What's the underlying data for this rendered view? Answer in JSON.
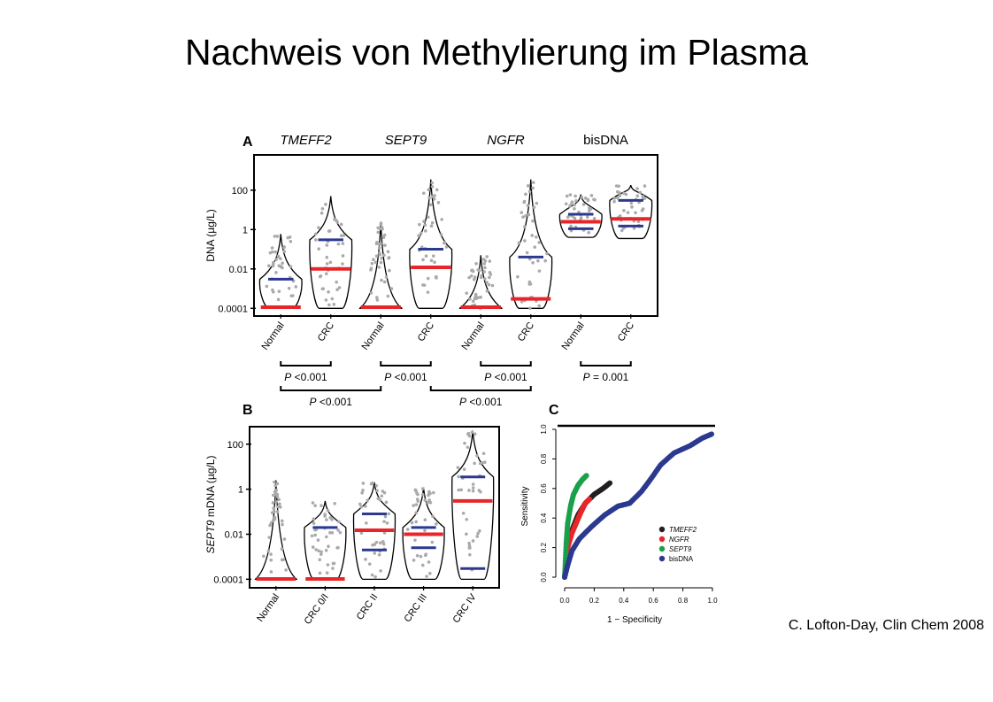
{
  "slide": {
    "title": "Nachweis von Methylierung im Plasma",
    "citation": "C. Lofton-Day, Clin Chem 2008"
  },
  "colors": {
    "median": "#e8262a",
    "quartile": "#2b3990",
    "point": "#aaaaaa",
    "tmeff2": "#231f20",
    "ngfr": "#e8262a",
    "sept9": "#1aa04a",
    "bisdna": "#2b3990"
  },
  "chart_data": [
    {
      "panel": "A",
      "type": "violin",
      "scale": "log",
      "ylabel": "DNA (µg/L)",
      "yticks": [
        {
          "value": 0.0001,
          "label": "0.0001"
        },
        {
          "value": 0.01,
          "label": "0.01"
        },
        {
          "value": 1,
          "label": "1"
        },
        {
          "value": 100,
          "label": "100"
        }
      ],
      "ylim": [
        5e-05,
        5000
      ],
      "gene_labels": [
        {
          "text": "TMEFF2",
          "italic": true
        },
        {
          "text": "SEPT9",
          "italic": true
        },
        {
          "text": "NGFR",
          "italic": true
        },
        {
          "text": "bisDNA",
          "italic": false
        }
      ],
      "groups": [
        {
          "label": "Normal",
          "min": 0.0001,
          "max": 0.6,
          "median": 0.0001,
          "q3": 0.003,
          "q1": null
        },
        {
          "label": "CRC",
          "min": 0.0001,
          "max": 50,
          "median": 0.01,
          "q3": 0.3,
          "q1": null
        },
        {
          "label": "Normal",
          "min": 0.0001,
          "max": 2.5,
          "median": 0.0001,
          "q3": null,
          "q1": null
        },
        {
          "label": "CRC",
          "min": 0.0001,
          "max": 350,
          "median": 0.012,
          "q3": 0.1,
          "q1": null
        },
        {
          "label": "Normal",
          "min": 0.0001,
          "max": 0.05,
          "median": 0.0001,
          "q3": null,
          "q1": null
        },
        {
          "label": "CRC",
          "min": 0.0001,
          "max": 350,
          "median": 0.0003,
          "q3": 0.04,
          "q1": null
        },
        {
          "label": "Normal",
          "min": 0.4,
          "max": 60,
          "median": 2.5,
          "q3": 6,
          "q1": 1.1
        },
        {
          "label": "CRC",
          "min": 0.35,
          "max": 180,
          "median": 3.5,
          "q3": 30,
          "q1": 1.5
        }
      ],
      "comparisons": [
        {
          "from": 0,
          "to": 1,
          "label": "P <0.001",
          "row": 1
        },
        {
          "from": 2,
          "to": 3,
          "label": "P <0.001",
          "row": 1
        },
        {
          "from": 4,
          "to": 5,
          "label": "P <0.001",
          "row": 1
        },
        {
          "from": 6,
          "to": 7,
          "label": "P = 0.001",
          "row": 1
        },
        {
          "from": 0,
          "to": 2,
          "label": "P <0.001",
          "row": 2
        },
        {
          "from": 3,
          "to": 5,
          "label": "P <0.001",
          "row": 2
        }
      ]
    },
    {
      "panel": "B",
      "type": "violin",
      "scale": "log",
      "ylabel_italic": "SEPT9",
      "ylabel_rest": " mDNA (µg/L)",
      "yticks": [
        {
          "value": 0.0001,
          "label": "0.0001"
        },
        {
          "value": 0.01,
          "label": "0.01"
        },
        {
          "value": 1,
          "label": "1"
        },
        {
          "value": 100,
          "label": "100"
        }
      ],
      "ylim": [
        5e-05,
        500
      ],
      "groups": [
        {
          "label": "Normal",
          "min": 0.0001,
          "max": 2.5,
          "median": 0.0001,
          "q3": null,
          "q1": null
        },
        {
          "label": "CRC 0/I",
          "min": 0.0001,
          "max": 0.3,
          "median": 0.0001,
          "q3": 0.02,
          "q1": null
        },
        {
          "label": "CRC II",
          "min": 0.0001,
          "max": 2.0,
          "median": 0.015,
          "q3": 0.08,
          "q1": 0.002
        },
        {
          "label": "CRC III",
          "min": 0.0001,
          "max": 1.2,
          "median": 0.01,
          "q3": 0.02,
          "q1": 0.0025
        },
        {
          "label": "CRC IV",
          "min": 0.0001,
          "max": 400,
          "median": 0.3,
          "q3": 3.5,
          "q1": 0.0003
        }
      ]
    },
    {
      "panel": "C",
      "type": "line",
      "xlabel": "1 − Specificity",
      "ylabel": "Sensitivity",
      "xlim": [
        0,
        1
      ],
      "ylim": [
        0,
        1
      ],
      "ticks": [
        "0.0",
        "0.2",
        "0.4",
        "0.6",
        "0.8",
        "1.0"
      ],
      "series": [
        {
          "name": "TMEFF2",
          "italic": true,
          "color": "#231f20",
          "x": [
            0.0,
            0.02,
            0.05,
            0.09,
            0.14,
            0.2,
            0.26,
            0.31
          ],
          "y": [
            0.0,
            0.2,
            0.32,
            0.42,
            0.5,
            0.56,
            0.6,
            0.64
          ]
        },
        {
          "name": "NGFR",
          "italic": true,
          "color": "#e8262a",
          "x": [
            0.0,
            0.02,
            0.05,
            0.08,
            0.11,
            0.14,
            0.17
          ],
          "y": [
            0.0,
            0.2,
            0.3,
            0.37,
            0.44,
            0.5,
            0.53
          ]
        },
        {
          "name": "SEPT9",
          "italic": true,
          "color": "#1aa04a",
          "x": [
            0.0,
            0.01,
            0.02,
            0.04,
            0.06,
            0.09,
            0.12,
            0.15
          ],
          "y": [
            0.0,
            0.22,
            0.36,
            0.48,
            0.56,
            0.62,
            0.66,
            0.69
          ]
        },
        {
          "name": "bisDNA",
          "italic": false,
          "color": "#2b3990",
          "x": [
            0.0,
            0.02,
            0.05,
            0.1,
            0.18,
            0.27,
            0.36,
            0.44,
            0.52,
            0.58,
            0.65,
            0.74,
            0.85,
            0.93,
            1.0
          ],
          "y": [
            0.0,
            0.08,
            0.18,
            0.26,
            0.34,
            0.42,
            0.48,
            0.5,
            0.58,
            0.66,
            0.76,
            0.84,
            0.89,
            0.94,
            0.97
          ]
        }
      ]
    }
  ]
}
